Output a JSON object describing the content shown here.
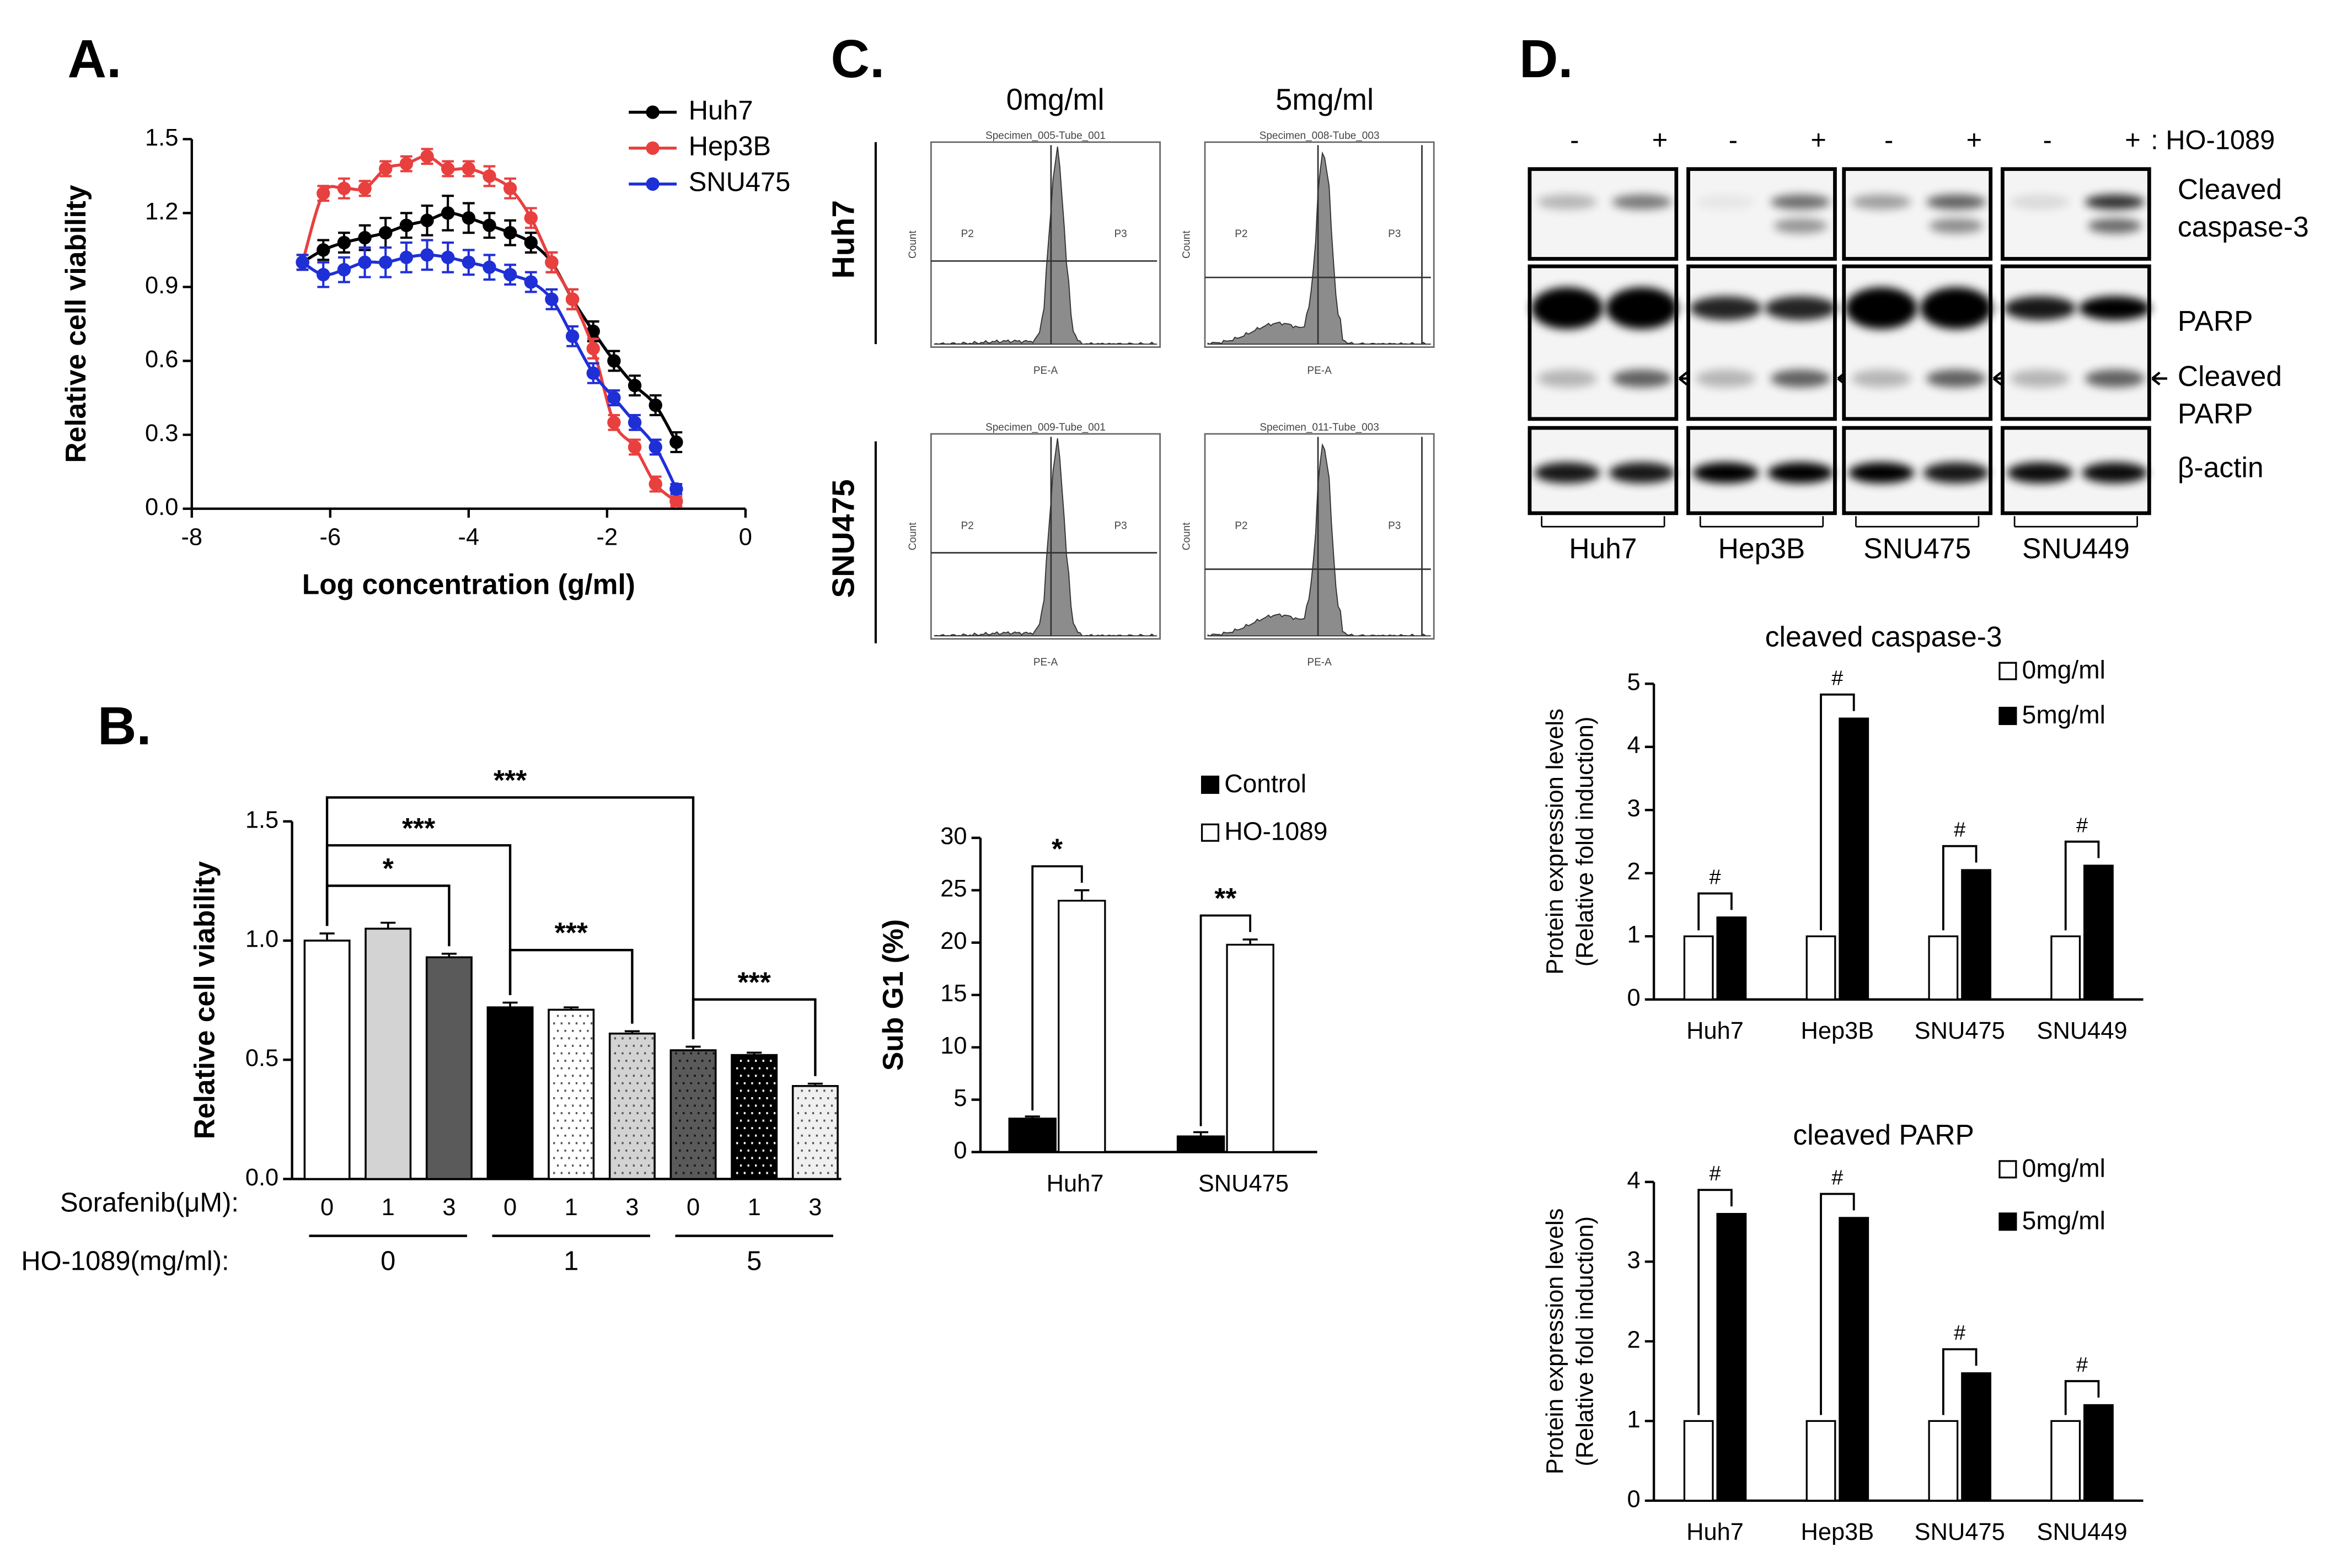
{
  "panels": {
    "labels": [
      "A.",
      "B.",
      "C.",
      "D."
    ]
  },
  "chart_data": [
    {
      "type": "line",
      "ylabel": "Relative cell viability",
      "xlabel": "Log concentration (g/ml)",
      "xlim": [
        -8,
        0
      ],
      "xticks": [
        -8,
        -6,
        -4,
        -2,
        0
      ],
      "ylim": [
        0,
        1.5
      ],
      "yticks": [
        {
          "value": 0,
          "label": "0.0"
        },
        0.3,
        0.6,
        0.9,
        1.2,
        1.5
      ],
      "legend": "upper right",
      "x": [
        -6.4,
        -6.1,
        -5.8,
        -5.5,
        -5.2,
        -4.9,
        -4.6,
        -4.3,
        -4.0,
        -3.7,
        -3.4,
        -3.1,
        -2.8,
        -2.5,
        -2.2,
        -1.9,
        -1.6,
        -1.3,
        -1.0
      ],
      "series": [
        {
          "name": "Huh7",
          "color": "#000000",
          "values": [
            1.0,
            1.05,
            1.08,
            1.1,
            1.12,
            1.15,
            1.17,
            1.2,
            1.18,
            1.15,
            1.12,
            1.08,
            1.0,
            0.85,
            0.72,
            0.6,
            0.5,
            0.42,
            0.27
          ],
          "errors": [
            0.03,
            0.04,
            0.04,
            0.05,
            0.06,
            0.05,
            0.06,
            0.07,
            0.06,
            0.05,
            0.05,
            0.04,
            0.04,
            0.04,
            0.04,
            0.04,
            0.04,
            0.04,
            0.04
          ]
        },
        {
          "name": "Hep3B",
          "color": "#e8403f",
          "values": [
            1.0,
            1.28,
            1.3,
            1.3,
            1.38,
            1.4,
            1.43,
            1.38,
            1.38,
            1.35,
            1.3,
            1.18,
            1.0,
            0.85,
            0.65,
            0.35,
            0.25,
            0.1,
            0.03
          ],
          "errors": [
            0.03,
            0.03,
            0.04,
            0.03,
            0.03,
            0.03,
            0.03,
            0.03,
            0.03,
            0.04,
            0.04,
            0.04,
            0.04,
            0.04,
            0.04,
            0.03,
            0.03,
            0.03,
            0.02
          ]
        },
        {
          "name": "SNU475",
          "color": "#1f2fd6",
          "values": [
            1.0,
            0.95,
            0.97,
            1.0,
            1.0,
            1.02,
            1.03,
            1.02,
            1.0,
            0.98,
            0.95,
            0.92,
            0.85,
            0.7,
            0.55,
            0.45,
            0.35,
            0.25,
            0.08
          ],
          "errors": [
            0.03,
            0.05,
            0.05,
            0.06,
            0.06,
            0.06,
            0.06,
            0.06,
            0.05,
            0.05,
            0.04,
            0.04,
            0.04,
            0.04,
            0.04,
            0.03,
            0.03,
            0.03,
            0.02
          ]
        }
      ]
    },
    {
      "type": "bar",
      "ylabel": "Relative cell viability",
      "ylim": [
        0,
        1.5
      ],
      "yticks": [
        {
          "value": 0,
          "label": "0.0"
        },
        0.5,
        {
          "value": 1,
          "label": "1.0"
        },
        1.5
      ],
      "category_label": "Sorafenib(μM):",
      "group_label": "HO-1089(mg/ml):",
      "categories": [
        "0",
        "1",
        "3",
        "0",
        "1",
        "3",
        "0",
        "1",
        "3"
      ],
      "groups": [
        "0",
        "1",
        "5"
      ],
      "values": [
        1.0,
        1.05,
        0.93,
        0.72,
        0.71,
        0.61,
        0.54,
        0.52,
        0.39
      ],
      "errors": [
        0.03,
        0.025,
        0.015,
        0.02,
        0.01,
        0.01,
        0.015,
        0.01,
        0.01
      ],
      "colors": [
        "#ffffff",
        "#d3d3d3",
        "#5a5a5a",
        "#000000",
        "#ffffff",
        "#d3d3d3",
        "#5a5a5a",
        "#000000",
        "#f0f0f0"
      ],
      "dotted": [
        false,
        false,
        false,
        false,
        true,
        true,
        true,
        true,
        true
      ],
      "annotations": [
        "*",
        "***",
        "***",
        "***",
        "***"
      ]
    },
    {
      "type": "bar",
      "ylabel": "Sub G1 (%)",
      "ylim": [
        0,
        30
      ],
      "yticks": [
        0,
        5,
        10,
        15,
        20,
        25,
        30
      ],
      "categories": [
        "Huh7",
        "SNU475"
      ],
      "series": [
        {
          "name": "Control",
          "color": "#000000",
          "values": [
            3.2,
            1.5
          ],
          "errors": [
            0.2,
            0.4
          ]
        },
        {
          "name": "HO-1089",
          "color": "#ffffff",
          "values": [
            24,
            19.8
          ],
          "errors": [
            1.0,
            0.5
          ]
        }
      ],
      "annotations": [
        "*",
        "**"
      ]
    },
    {
      "type": "bar",
      "title": "cleaved caspase-3",
      "ylabel": [
        "Protein expression levels",
        "(Relative fold induction)"
      ],
      "ylim": [
        0,
        5
      ],
      "yticks": [
        0,
        1,
        2,
        3,
        4,
        5
      ],
      "categories": [
        "Huh7",
        "Hep3B",
        "SNU475",
        "SNU449"
      ],
      "series": [
        {
          "name": "0mg/ml",
          "color": "#ffffff",
          "values": [
            1,
            1,
            1,
            1
          ]
        },
        {
          "name": "5mg/ml",
          "color": "#000000",
          "values": [
            1.3,
            4.45,
            2.05,
            2.12
          ]
        }
      ],
      "annotations": [
        "#",
        "#",
        "#",
        "#"
      ]
    },
    {
      "type": "bar",
      "title": "cleaved PARP",
      "ylabel": [
        "Protein expression levels",
        "(Relative fold induction)"
      ],
      "ylim": [
        0,
        4
      ],
      "yticks": [
        0,
        1,
        2,
        3,
        4
      ],
      "categories": [
        "Huh7",
        "Hep3B",
        "SNU475",
        "SNU449"
      ],
      "series": [
        {
          "name": "0mg/ml",
          "color": "#ffffff",
          "values": [
            1,
            1,
            1,
            1
          ]
        },
        {
          "name": "5mg/ml",
          "color": "#000000",
          "values": [
            3.6,
            3.55,
            1.6,
            1.2
          ]
        }
      ],
      "annotations": [
        "#",
        "#",
        "#",
        "#"
      ]
    }
  ],
  "flow": {
    "columns": [
      "0mg/ml",
      "5mg/ml"
    ],
    "rows": [
      "Huh7",
      "SNU475"
    ],
    "titles": [
      "Specimen_005-Tube_001",
      "Specimen_008-Tube_003",
      "Specimen_009-Tube_001",
      "Specimen_011-Tube_003"
    ],
    "gates": [
      "P2",
      "P3"
    ],
    "xlabel": "PE-A",
    "ylabel": "Count"
  },
  "western_blot": {
    "treatments": [
      "-",
      "+"
    ],
    "treatment_label": ": HO-1089",
    "cell_lines": [
      "Huh7",
      "Hep3B",
      "SNU475",
      "SNU449"
    ],
    "bands": [
      [
        "Cleaved",
        "caspase-3"
      ],
      [
        "PARP"
      ],
      [
        "Cleaved",
        "PARP"
      ],
      [
        "β-actin"
      ]
    ]
  }
}
